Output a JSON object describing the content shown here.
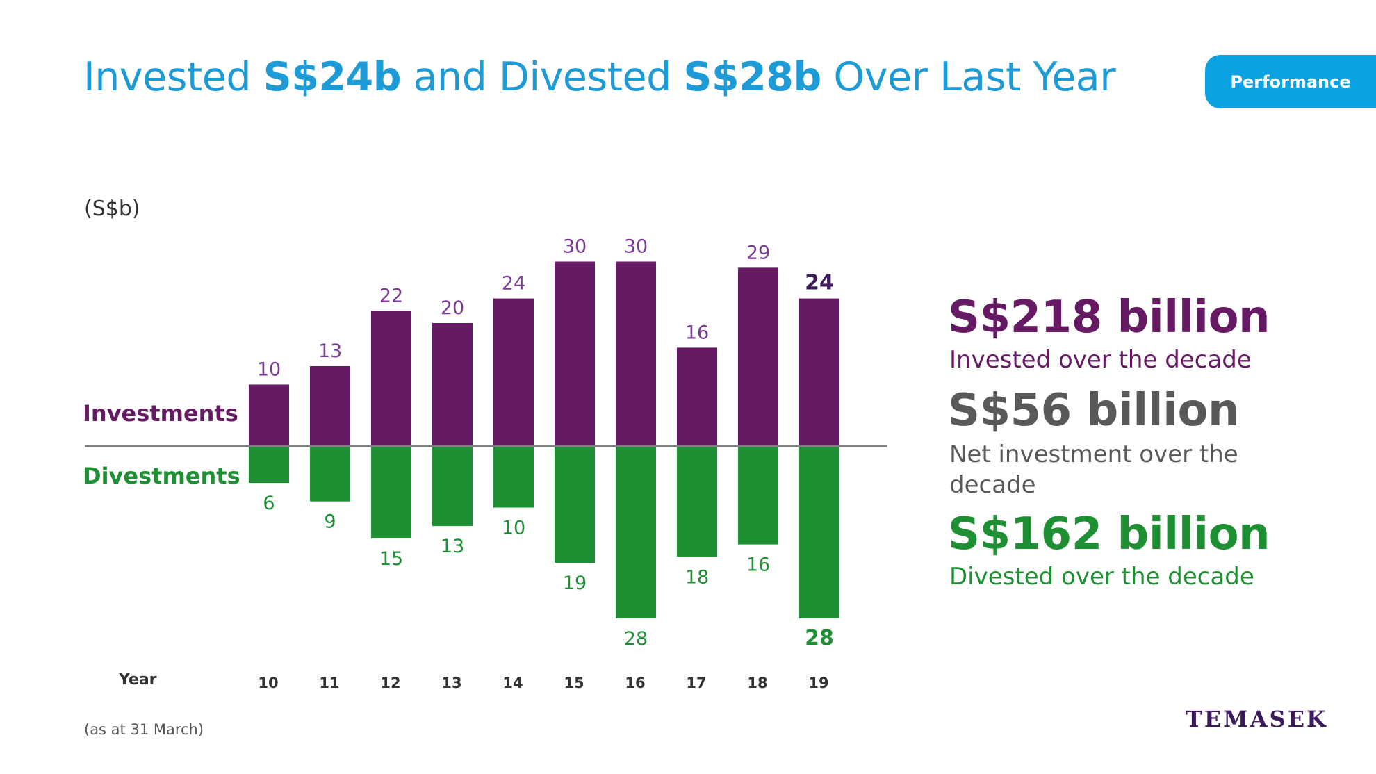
{
  "header": {
    "title_part1": "Invested ",
    "title_bold1": "S$24b",
    "title_part2": " and Divested ",
    "title_bold2": "S$28b",
    "title_part3": " Over Last Year",
    "tab_label": "Performance"
  },
  "chart_data": {
    "type": "bar",
    "unit_label": "(S$b)",
    "xlabel": "Year",
    "categories": [
      "10",
      "11",
      "12",
      "13",
      "14",
      "15",
      "16",
      "17",
      "18",
      "19"
    ],
    "series": [
      {
        "name": "Investments",
        "values": [
          10,
          13,
          22,
          20,
          24,
          30,
          30,
          16,
          29,
          24
        ],
        "color": "#661a64"
      },
      {
        "name": "Divestments",
        "values": [
          6,
          9,
          15,
          13,
          10,
          19,
          28,
          18,
          16,
          28
        ],
        "color": "#1f8f34"
      }
    ],
    "highlight_last": true,
    "grid": false
  },
  "footnote": "(as at 31 March)",
  "stats": [
    {
      "value": "S$218 billion",
      "desc": "Invested over the decade",
      "color": "#661a64"
    },
    {
      "value": "S$56 billion",
      "desc": "Net investment over the decade",
      "color": "#595959"
    },
    {
      "value": "S$162 billion",
      "desc": "Divested over the decade",
      "color": "#1f8f34"
    }
  ],
  "brand": {
    "logo_text": "TEMASEK"
  }
}
